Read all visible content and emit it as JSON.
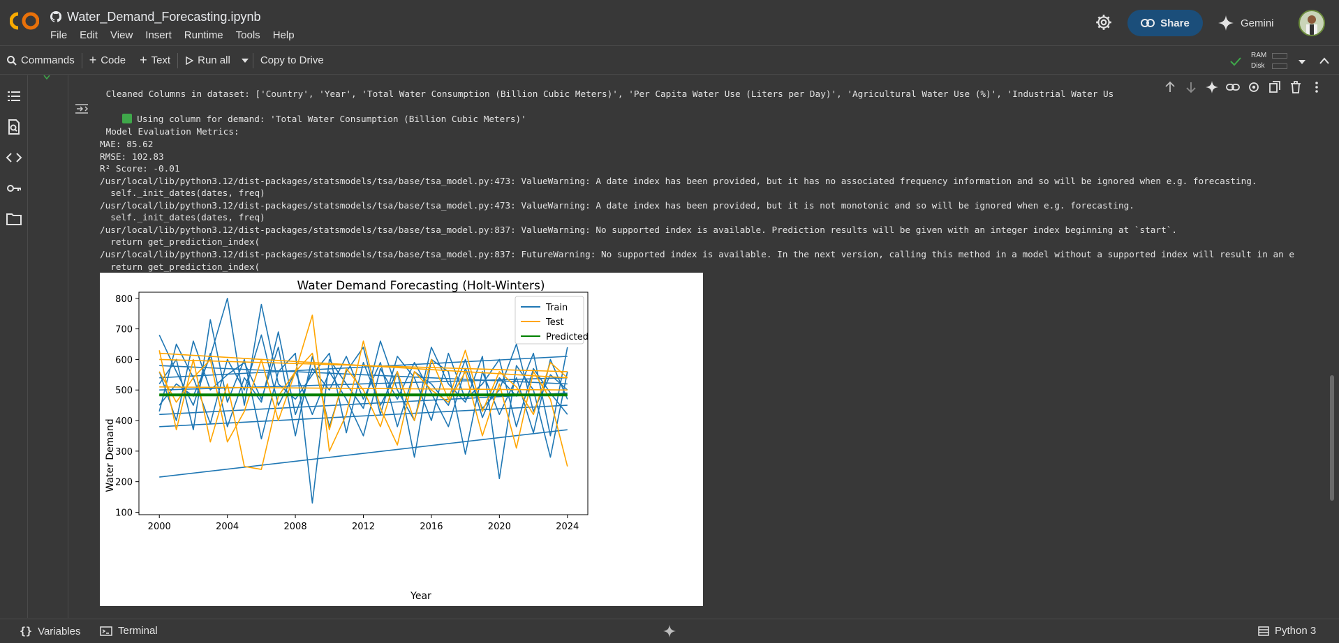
{
  "app": {
    "notebook_title": "Water_Demand_Forecasting.ipynb",
    "menu": [
      "File",
      "Edit",
      "View",
      "Insert",
      "Runtime",
      "Tools",
      "Help"
    ],
    "share_label": "Share",
    "gemini_label": "Gemini"
  },
  "toolbar": {
    "commands_label": "Commands",
    "code_label": "Code",
    "text_label": "Text",
    "run_all_label": "Run all",
    "copy_to_drive_label": "Copy to Drive",
    "ram_label": "RAM",
    "disk_label": "Disk"
  },
  "output": {
    "lines": [
      " Cleaned Columns in dataset: ['Country', 'Year', 'Total Water Consumption (Billion Cubic Meters)', 'Per Capita Water Use (Liters per Day)', 'Agricultural Water Use (%)', 'Industrial Water Us",
      "Using column for demand: 'Total Water Consumption (Billion Cubic Meters)'",
      "",
      " Model Evaluation Metrics:",
      "MAE: 85.62",
      "RMSE: 102.83",
      "R² Score: -0.01",
      "/usr/local/lib/python3.12/dist-packages/statsmodels/tsa/base/tsa_model.py:473: ValueWarning: A date index has been provided, but it has no associated frequency information and so will be ignored when e.g. forecasting.",
      "  self._init_dates(dates, freq)",
      "/usr/local/lib/python3.12/dist-packages/statsmodels/tsa/base/tsa_model.py:473: ValueWarning: A date index has been provided, but it is not monotonic and so will be ignored when e.g. forecasting.",
      "  self._init_dates(dates, freq)",
      "/usr/local/lib/python3.12/dist-packages/statsmodels/tsa/base/tsa_model.py:837: ValueWarning: No supported index is available. Prediction results will be given with an integer index beginning at `start`.",
      "  return get_prediction_index(",
      "/usr/local/lib/python3.12/dist-packages/statsmodels/tsa/base/tsa_model.py:837: FutureWarning: No supported index is available. In the next version, calling this method in a model without a supported index will result in an e",
      "  return get_prediction_index("
    ]
  },
  "statusbar": {
    "variables_label": "Variables",
    "terminal_label": "Terminal",
    "kernel_label": "Python 3"
  },
  "colors": {
    "train": "#1f77b4",
    "test": "#ffa500",
    "predicted": "#008000",
    "share_bg": "#1b4e7a",
    "check": "#3fa84a"
  },
  "icons": [
    "colab-logo-icon",
    "github-icon",
    "gear-icon",
    "link-icon",
    "gemini-sparkle-icon",
    "search-icon",
    "plus-icon",
    "play-icon",
    "chevron-down-icon",
    "check-icon",
    "chevron-up-icon",
    "toc-icon",
    "find-icon",
    "code-icon",
    "key-icon",
    "folder-icon",
    "arrow-up-icon",
    "arrow-down-icon",
    "sparkle-icon",
    "settings-icon",
    "mirror-icon",
    "trash-icon",
    "more-icon",
    "output-icon",
    "variables-icon",
    "terminal-icon",
    "ram-icon"
  ],
  "chart_data": {
    "type": "line",
    "title": "Water Demand Forecasting (Holt-Winters)",
    "xlabel": "Year",
    "ylabel": "Water Demand",
    "xlim": [
      1998.8,
      2025.2
    ],
    "ylim": [
      92,
      820
    ],
    "xticks": [
      2000,
      2004,
      2008,
      2012,
      2016,
      2020,
      2024
    ],
    "yticks": [
      100,
      200,
      300,
      400,
      500,
      600,
      700,
      800
    ],
    "legend_position": "top-right",
    "series": [
      {
        "name": "Train",
        "color": "#1f77b4",
        "segments": [
          [
            [
              2000,
              215
            ],
            [
              2024,
              370
            ]
          ],
          [
            [
              2000,
              680
            ],
            [
              2001,
              560
            ],
            [
              2002,
              450
            ],
            [
              2003,
              620
            ],
            [
              2004,
              380
            ],
            [
              2005,
              540
            ],
            [
              2006,
              460
            ],
            [
              2007,
              690
            ],
            [
              2008,
              420
            ],
            [
              2009,
              570
            ],
            [
              2010,
              500
            ],
            [
              2011,
              610
            ],
            [
              2012,
              470
            ],
            [
              2013,
              590
            ],
            [
              2014,
              380
            ],
            [
              2015,
              560
            ],
            [
              2016,
              520
            ],
            [
              2017,
              450
            ],
            [
              2018,
              600
            ],
            [
              2019,
              410
            ],
            [
              2020,
              540
            ],
            [
              2021,
              480
            ],
            [
              2022,
              620
            ],
            [
              2023,
              350
            ],
            [
              2024,
              640
            ]
          ],
          [
            [
              2000,
              520
            ],
            [
              2001,
              600
            ],
            [
              2002,
              370
            ],
            [
              2003,
              730
            ],
            [
              2004,
              460
            ],
            [
              2005,
              600
            ],
            [
              2006,
              340
            ],
            [
              2007,
              560
            ],
            [
              2008,
              620
            ],
            [
              2009,
              130
            ],
            [
              2010,
              600
            ],
            [
              2011,
              520
            ],
            [
              2012,
              440
            ],
            [
              2013,
              660
            ],
            [
              2014,
              500
            ],
            [
              2015,
              400
            ],
            [
              2016,
              640
            ],
            [
              2017,
              520
            ],
            [
              2018,
              460
            ],
            [
              2019,
              610
            ],
            [
              2020,
              210
            ],
            [
              2021,
              580
            ],
            [
              2022,
              500
            ],
            [
              2023,
              280
            ],
            [
              2024,
              560
            ]
          ],
          [
            [
              2000,
              450
            ],
            [
              2001,
              520
            ],
            [
              2002,
              480
            ],
            [
              2003,
              610
            ],
            [
              2004,
              800
            ],
            [
              2005,
              450
            ],
            [
              2006,
              780
            ],
            [
              2007,
              520
            ],
            [
              2008,
              470
            ],
            [
              2009,
              550
            ],
            [
              2010,
              620
            ],
            [
              2011,
              360
            ],
            [
              2012,
              590
            ],
            [
              2013,
              450
            ],
            [
              2014,
              560
            ],
            [
              2015,
              280
            ],
            [
              2016,
              600
            ],
            [
              2017,
              560
            ],
            [
              2018,
              290
            ],
            [
              2019,
              560
            ],
            [
              2020,
              420
            ],
            [
              2021,
              540
            ],
            [
              2022,
              360
            ],
            [
              2023,
              600
            ],
            [
              2024,
              470
            ]
          ],
          [
            [
              2000,
              560
            ],
            [
              2001,
              400
            ],
            [
              2002,
              660
            ],
            [
              2003,
              500
            ],
            [
              2004,
              550
            ],
            [
              2005,
              590
            ],
            [
              2006,
              470
            ],
            [
              2007,
              640
            ],
            [
              2008,
              350
            ],
            [
              2009,
              610
            ],
            [
              2010,
              380
            ],
            [
              2011,
              560
            ],
            [
              2012,
              640
            ],
            [
              2013,
              420
            ],
            [
              2014,
              610
            ],
            [
              2015,
              540
            ],
            [
              2016,
              400
            ],
            [
              2017,
              620
            ],
            [
              2018,
              470
            ],
            [
              2019,
              520
            ],
            [
              2020,
              600
            ],
            [
              2021,
              380
            ],
            [
              2022,
              570
            ],
            [
              2023,
              490
            ],
            [
              2024,
              420
            ]
          ],
          [
            [
              2000,
              430
            ],
            [
              2001,
              650
            ],
            [
              2002,
              540
            ],
            [
              2003,
              390
            ],
            [
              2004,
              600
            ],
            [
              2005,
              500
            ],
            [
              2006,
              680
            ],
            [
              2007,
              450
            ],
            [
              2008,
              560
            ],
            [
              2009,
              420
            ],
            [
              2010,
              560
            ],
            [
              2011,
              470
            ],
            [
              2012,
              350
            ],
            [
              2013,
              570
            ],
            [
              2014,
              470
            ],
            [
              2015,
              590
            ],
            [
              2016,
              490
            ],
            [
              2017,
              380
            ],
            [
              2018,
              570
            ],
            [
              2019,
              440
            ],
            [
              2020,
              500
            ],
            [
              2021,
              650
            ],
            [
              2022,
              430
            ],
            [
              2023,
              550
            ],
            [
              2024,
              500
            ]
          ],
          [
            [
              2000,
              380
            ],
            [
              2024,
              450
            ]
          ],
          [
            [
              2000,
              540
            ],
            [
              2024,
              610
            ]
          ],
          [
            [
              2000,
              500
            ],
            [
              2024,
              540
            ]
          ],
          [
            [
              2000,
              580
            ],
            [
              2024,
              520
            ]
          ],
          [
            [
              2000,
              420
            ],
            [
              2024,
              490
            ]
          ]
        ]
      },
      {
        "name": "Test",
        "color": "#ffa500",
        "segments": [
          [
            [
              2000,
              630
            ],
            [
              2001,
              370
            ],
            [
              2002,
              600
            ],
            [
              2003,
              330
            ],
            [
              2004,
              520
            ],
            [
              2005,
              250
            ],
            [
              2006,
              240
            ],
            [
              2007,
              480
            ],
            [
              2008,
              560
            ],
            [
              2009,
              745
            ],
            [
              2010,
              300
            ],
            [
              2011,
              420
            ],
            [
              2012,
              660
            ],
            [
              2013,
              440
            ],
            [
              2014,
              320
            ],
            [
              2015,
              560
            ],
            [
              2016,
              500
            ],
            [
              2017,
              460
            ],
            [
              2018,
              560
            ],
            [
              2019,
              350
            ],
            [
              2020,
              520
            ],
            [
              2021,
              310
            ],
            [
              2022,
              560
            ],
            [
              2023,
              470
            ],
            [
              2024,
              250
            ]
          ],
          [
            [
              2000,
              560
            ],
            [
              2001,
              460
            ],
            [
              2002,
              540
            ],
            [
              2003,
              600
            ],
            [
              2004,
              330
            ],
            [
              2005,
              430
            ],
            [
              2006,
              600
            ],
            [
              2007,
              400
            ],
            [
              2008,
              560
            ],
            [
              2009,
              620
            ],
            [
              2010,
              370
            ],
            [
              2011,
              570
            ],
            [
              2012,
              500
            ],
            [
              2013,
              380
            ],
            [
              2014,
              560
            ],
            [
              2015,
              400
            ],
            [
              2016,
              600
            ],
            [
              2017,
              470
            ],
            [
              2018,
              630
            ],
            [
              2019,
              430
            ],
            [
              2020,
              560
            ],
            [
              2021,
              510
            ],
            [
              2022,
              420
            ],
            [
              2023,
              590
            ],
            [
              2024,
              540
            ]
          ],
          [
            [
              2000,
              620
            ],
            [
              2024,
              540
            ]
          ],
          [
            [
              2000,
              600
            ],
            [
              2024,
              560
            ]
          ],
          [
            [
              2000,
              510
            ],
            [
              2024,
              500
            ]
          ]
        ]
      },
      {
        "name": "Predicted",
        "color": "#008000",
        "segments": [
          [
            [
              2000,
              486
            ],
            [
              2024,
              486
            ]
          ],
          [
            [
              2000,
              482
            ],
            [
              2024,
              482
            ]
          ]
        ]
      }
    ]
  }
}
